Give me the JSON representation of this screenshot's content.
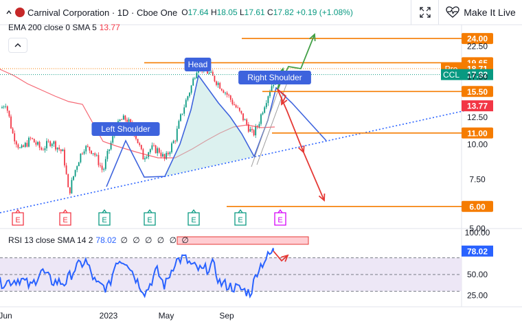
{
  "header": {
    "symbol_title": "Carnival Corporation · 1D · Cboe One",
    "ohlc": {
      "o_label": "O",
      "o": "17.64",
      "h_label": "H",
      "h": "18.05",
      "l_label": "L",
      "l": "17.61",
      "c_label": "C",
      "c": "17.82",
      "change": "+0.19 (+1.08%)"
    },
    "make_it_live_label": "Make It Live"
  },
  "indicators": {
    "ema_label": "EMA 200 close 0 SMA 5",
    "ema_value": "13.77",
    "rsi_label": "RSI 13 close SMA 14 2",
    "rsi_value": "78.02",
    "rsi_dots": "∅ ∅ ∅ ∅ ∅ ∅"
  },
  "colors": {
    "up": "#089981",
    "down": "#f23645",
    "line_blue": "#2962ff",
    "pattern_blue": "#3d63dd",
    "orange": "#f57c00",
    "green_arrow": "#43a047",
    "red_arrow": "#e53935",
    "ema": "#f23645",
    "rsi": "#2962ff",
    "rsi_band": "#ede7f6"
  },
  "chart_data": {
    "type": "candlestick",
    "title": "Carnival Corporation · 1D · Cboe One",
    "price_axis_ticks": [
      22.5,
      17.5,
      12.5,
      10.0,
      7.5,
      5.0
    ],
    "x_tick_labels": [
      "Jun",
      "2023",
      "May",
      "Sep"
    ],
    "price_levels": [
      {
        "label": "24.00",
        "value": 24.0
      },
      {
        "label": "19.65",
        "value": 19.65
      },
      {
        "label": "15.50",
        "value": 15.5
      },
      {
        "label": "11.00",
        "value": 11.0
      },
      {
        "label": "6.00",
        "value": 6.0
      }
    ],
    "price_tags": [
      {
        "prefix": "Pre",
        "value": "18.71",
        "color": "#f57c00"
      },
      {
        "prefix": "CCL",
        "value": "17.82",
        "color": "#089981"
      },
      {
        "prefix": "",
        "value": "13.77",
        "color": "#f23645"
      }
    ],
    "pattern_labels": [
      "Left Shoulder",
      "Head",
      "Right Shoulder"
    ],
    "events": [
      "E",
      "E",
      "E",
      "E",
      "E",
      "E",
      "E"
    ],
    "rsi": {
      "axis_ticks": [
        100.0,
        50.0,
        25.0
      ],
      "upper_band": 70,
      "middle": 50,
      "lower_band": 30,
      "value": 78.02
    }
  }
}
